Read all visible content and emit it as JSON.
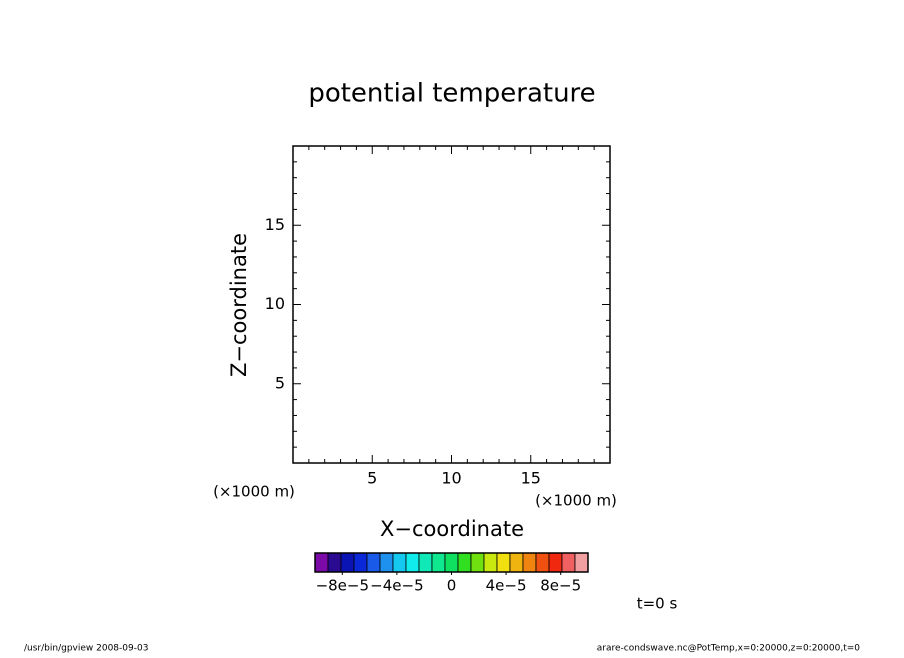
{
  "chart_data": {
    "type": "contour",
    "title": "potential temperature",
    "xlabel": "X−coordinate",
    "ylabel": "Z−coordinate",
    "xunit": "(×1000 m)",
    "yunit": "(×1000 m)",
    "xlim": [
      0,
      20
    ],
    "ylim": [
      0,
      20
    ],
    "xticks": [
      5,
      10,
      15
    ],
    "yticks": [
      5,
      10,
      15
    ],
    "xminorticks": [
      1,
      2,
      3,
      4,
      6,
      7,
      8,
      9,
      11,
      12,
      13,
      14,
      16,
      17,
      18,
      19
    ],
    "yminorticks": [
      1,
      2,
      3,
      4,
      6,
      7,
      8,
      9,
      11,
      12,
      13,
      14,
      16,
      17,
      18,
      19
    ],
    "colorbar": {
      "lim": [
        -0.0001,
        0.0001
      ],
      "colors": [
        "#7c0aa8",
        "#2a0a90",
        "#0a14b4",
        "#0a28d8",
        "#1a5ae8",
        "#1e90ee",
        "#14c8f0",
        "#10ecec",
        "#10e8b8",
        "#10e890",
        "#10e060",
        "#30e020",
        "#70e010",
        "#c8e810",
        "#f0e010",
        "#f0b410",
        "#f08410",
        "#f05010",
        "#f02810",
        "#f06060",
        "#f0a0a0"
      ],
      "ticks": [
        {
          "value": -8e-05,
          "label": "−8e−5"
        },
        {
          "value": -4e-05,
          "label": "−4e−5"
        },
        0,
        {
          "value": 4e-05,
          "label": "4e−5"
        },
        {
          "value": 8e-05,
          "label": "8e−5"
        }
      ]
    },
    "time_label": "t=0 s",
    "footer_left": "/usr/bin/gpview   2008-09-03",
    "footer_right": "arare-condswave.nc@PotTemp,x=0:20000,z=0:20000,t=0"
  }
}
